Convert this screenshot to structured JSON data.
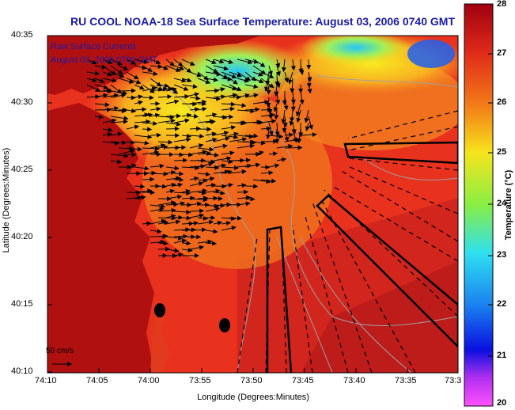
{
  "title": "RU COOL  NOAA-18  Sea Surface Temperature:  August 03, 2006 0740 GMT",
  "annotation": {
    "line1": "Raw Surface Currents",
    "line2": "August 03, 2006 0700 GMT"
  },
  "scale_label": "50 cm/s",
  "axes": {
    "xlabel": "Longitude (Degrees:Minutes)",
    "ylabel": "Latitude (Degrees:Minutes)",
    "x_ticks": [
      "74:10",
      "74:05",
      "74:00",
      "73:55",
      "73:50",
      "73:45",
      "73:40",
      "73:35",
      "73:3"
    ],
    "y_ticks": [
      "40:35",
      "40:30",
      "40:25",
      "40:20",
      "40:15",
      "40:10"
    ]
  },
  "colorbar": {
    "label": "Temperature (°C)",
    "ticks": [
      "28",
      "27",
      "26",
      "25",
      "24",
      "23",
      "22",
      "21",
      "20"
    ],
    "min": 20,
    "max": 28
  },
  "colors": {
    "title": "#1a1aa6",
    "warm": "#e8321e",
    "hot": "#b0101a",
    "land": "#b01010",
    "cool": "#f6e41c",
    "cold": "#2ee0f0"
  }
}
